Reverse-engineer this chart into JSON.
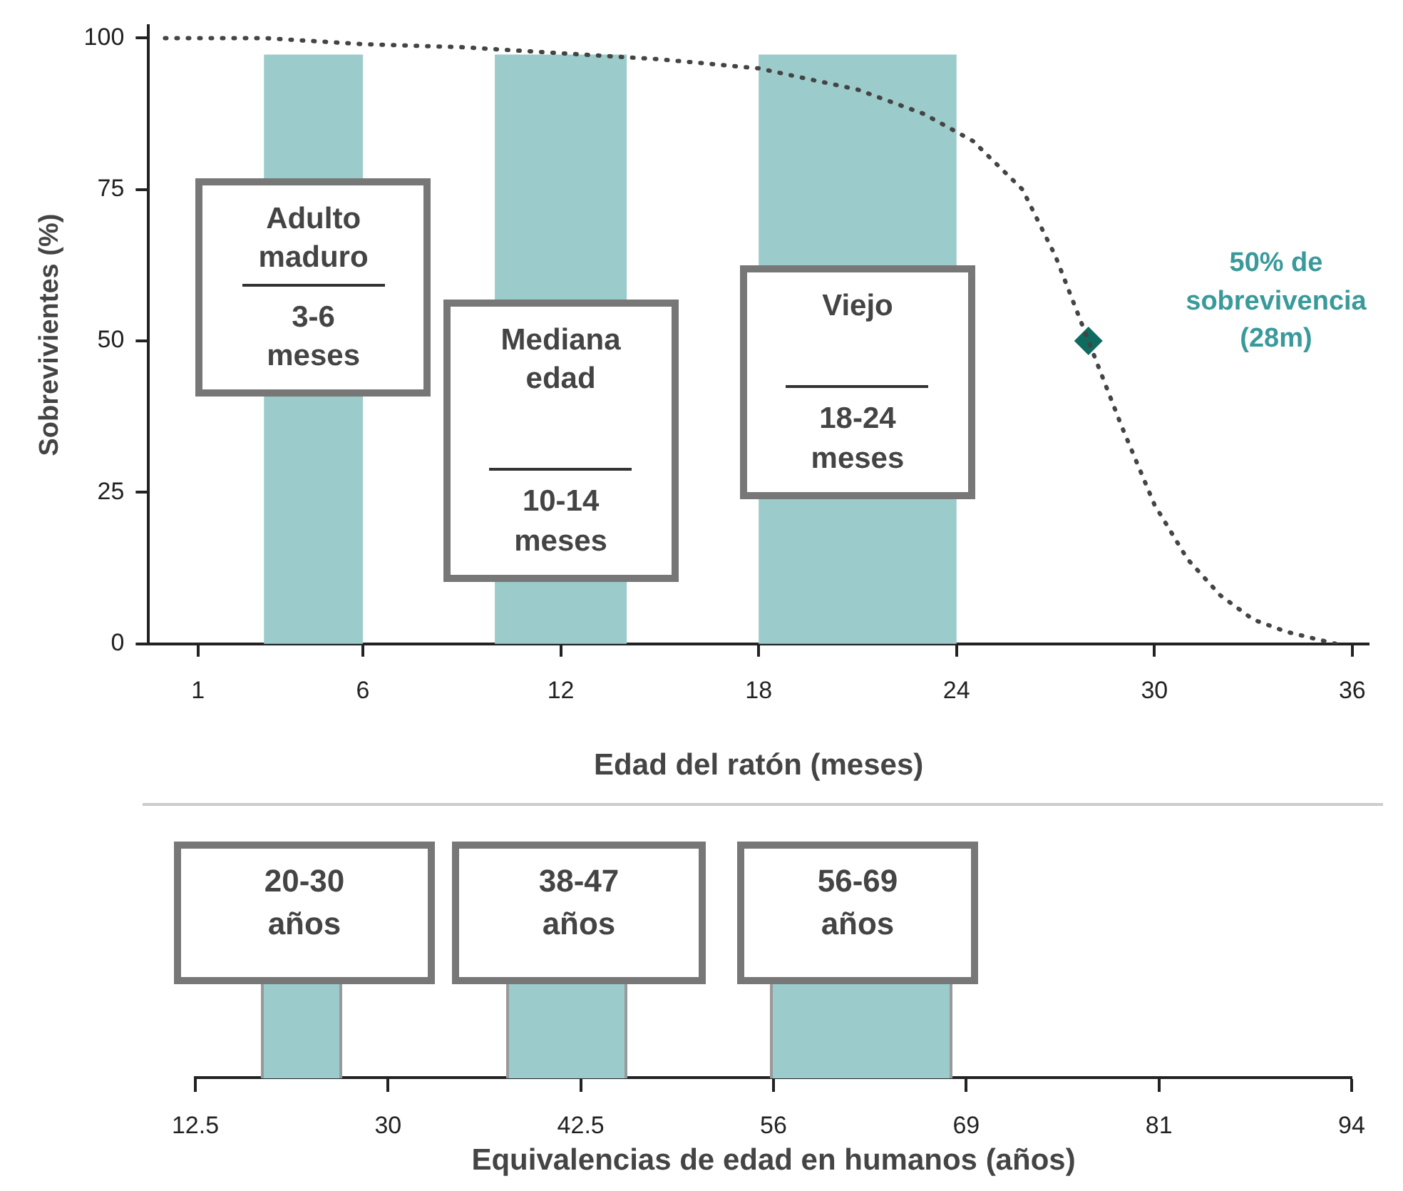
{
  "chart_data": [
    {
      "type": "line",
      "xlabel": "Edad del ratón (meses)",
      "ylabel": "Sobrevivientes (%)",
      "xlim": [
        -0.5,
        36.5
      ],
      "xticks": [
        1,
        6,
        12,
        18,
        24,
        30,
        36
      ],
      "ylim": [
        0,
        102
      ],
      "yticks": [
        0,
        25,
        50,
        75,
        100
      ],
      "legend": false,
      "marker": "none",
      "line_style": "dotted",
      "series": [
        {
          "x": [
            0,
            3,
            6,
            9,
            12,
            15,
            18,
            21,
            23,
            24.5,
            26,
            27,
            28,
            29,
            30,
            31,
            32,
            33,
            34,
            35.5
          ],
          "values": [
            100,
            100,
            99,
            98.5,
            97.5,
            96.5,
            95,
            91.5,
            87.5,
            83,
            75,
            64,
            50,
            36,
            23,
            14,
            8,
            4,
            2,
            0
          ],
          "color": "#444444"
        },
        {
          "type": "scatter",
          "marker": "diamond",
          "x": [
            28
          ],
          "values": [
            50
          ],
          "color": "#0f6b5f"
        }
      ],
      "bands": [
        {
          "axis": "x",
          "from": 3,
          "to": 6,
          "label": "Adulto maduro\n3-6 meses",
          "color": "#9ccbcb"
        },
        {
          "axis": "x",
          "from": 10,
          "to": 14,
          "label": "Mediana edad\n10-14 meses",
          "color": "#9ccbcb"
        },
        {
          "axis": "x",
          "from": 18,
          "to": 24,
          "label": "Viejo\n18-24 meses",
          "color": "#9ccbcb"
        }
      ],
      "annotations": [
        "50% de sobrevivencia (28m)"
      ]
    },
    {
      "type": "other",
      "categories": [
        "12.5",
        "30",
        "42.5",
        "56",
        "69",
        "81",
        "94"
      ],
      "xlabel": "Equivalencias de edad en humanos (años)",
      "annotations": [
        "20-30 años",
        "38-47 años",
        "56-69 años"
      ]
    }
  ]
}
